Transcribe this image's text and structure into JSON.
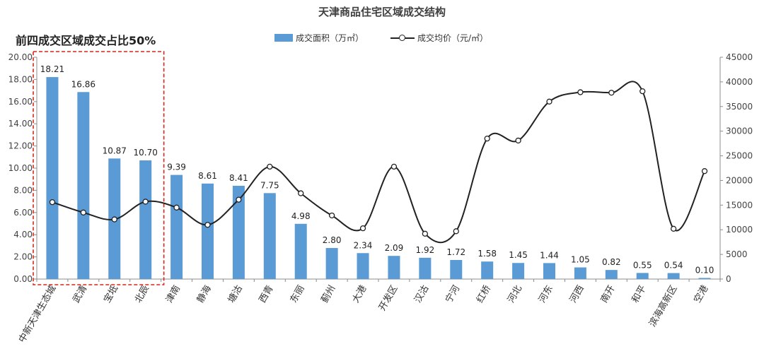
{
  "chart_data": {
    "type": "bar",
    "title": "天津商品住宅区域成交结构",
    "subtitle": "前四成交区域成交占比50%",
    "categories": [
      "中新天津生态城",
      "武清",
      "宝坻",
      "北辰",
      "津南",
      "静海",
      "塘沽",
      "西青",
      "东丽",
      "蓟州",
      "大港",
      "开发区",
      "汉沽",
      "宁河",
      "红桥",
      "河北",
      "河东",
      "河西",
      "南开",
      "和平",
      "滨海高新区",
      "空港"
    ],
    "series": [
      {
        "name": "成交面积（万㎡）",
        "type": "bar",
        "axis": "left",
        "color": "#5b9bd5",
        "values": [
          18.21,
          16.86,
          10.87,
          10.7,
          9.39,
          8.61,
          8.41,
          7.75,
          4.98,
          2.8,
          2.34,
          2.09,
          1.92,
          1.72,
          1.58,
          1.45,
          1.44,
          1.05,
          0.82,
          0.55,
          0.54,
          0.1
        ],
        "labels": [
          "18.21",
          "16.86",
          "10.87",
          "10.70",
          "9.39",
          "8.61",
          "8.41",
          "7.75",
          "4.98",
          "2.80",
          "2.34",
          "2.09",
          "1.92",
          "1.72",
          "1.58",
          "1.45",
          "1.44",
          "1.05",
          "0.82",
          "0.55",
          "0.54",
          "0.10"
        ]
      },
      {
        "name": "成交均价（元/㎡）",
        "type": "line",
        "axis": "right",
        "color": "#222222",
        "values": [
          15600,
          13500,
          12100,
          15700,
          14500,
          11000,
          16100,
          22800,
          17400,
          12900,
          10300,
          22800,
          9200,
          9700,
          28500,
          28100,
          36000,
          37900,
          37800,
          38100,
          10200,
          21900
        ]
      }
    ],
    "left_axis": {
      "min": 0,
      "max": 20,
      "step": 2,
      "ticks": [
        "0.00",
        "2.00",
        "4.00",
        "6.00",
        "8.00",
        "10.00",
        "12.00",
        "14.00",
        "16.00",
        "18.00",
        "20.00"
      ]
    },
    "right_axis": {
      "min": 0,
      "max": 45000,
      "step": 5000,
      "ticks": [
        "0",
        "5000",
        "10000",
        "15000",
        "20000",
        "25000",
        "30000",
        "35000",
        "40000",
        "45000"
      ]
    },
    "highlight_first_n": 4,
    "highlight_color": "#d9261c",
    "grid": false,
    "legend_position": "top-center"
  }
}
